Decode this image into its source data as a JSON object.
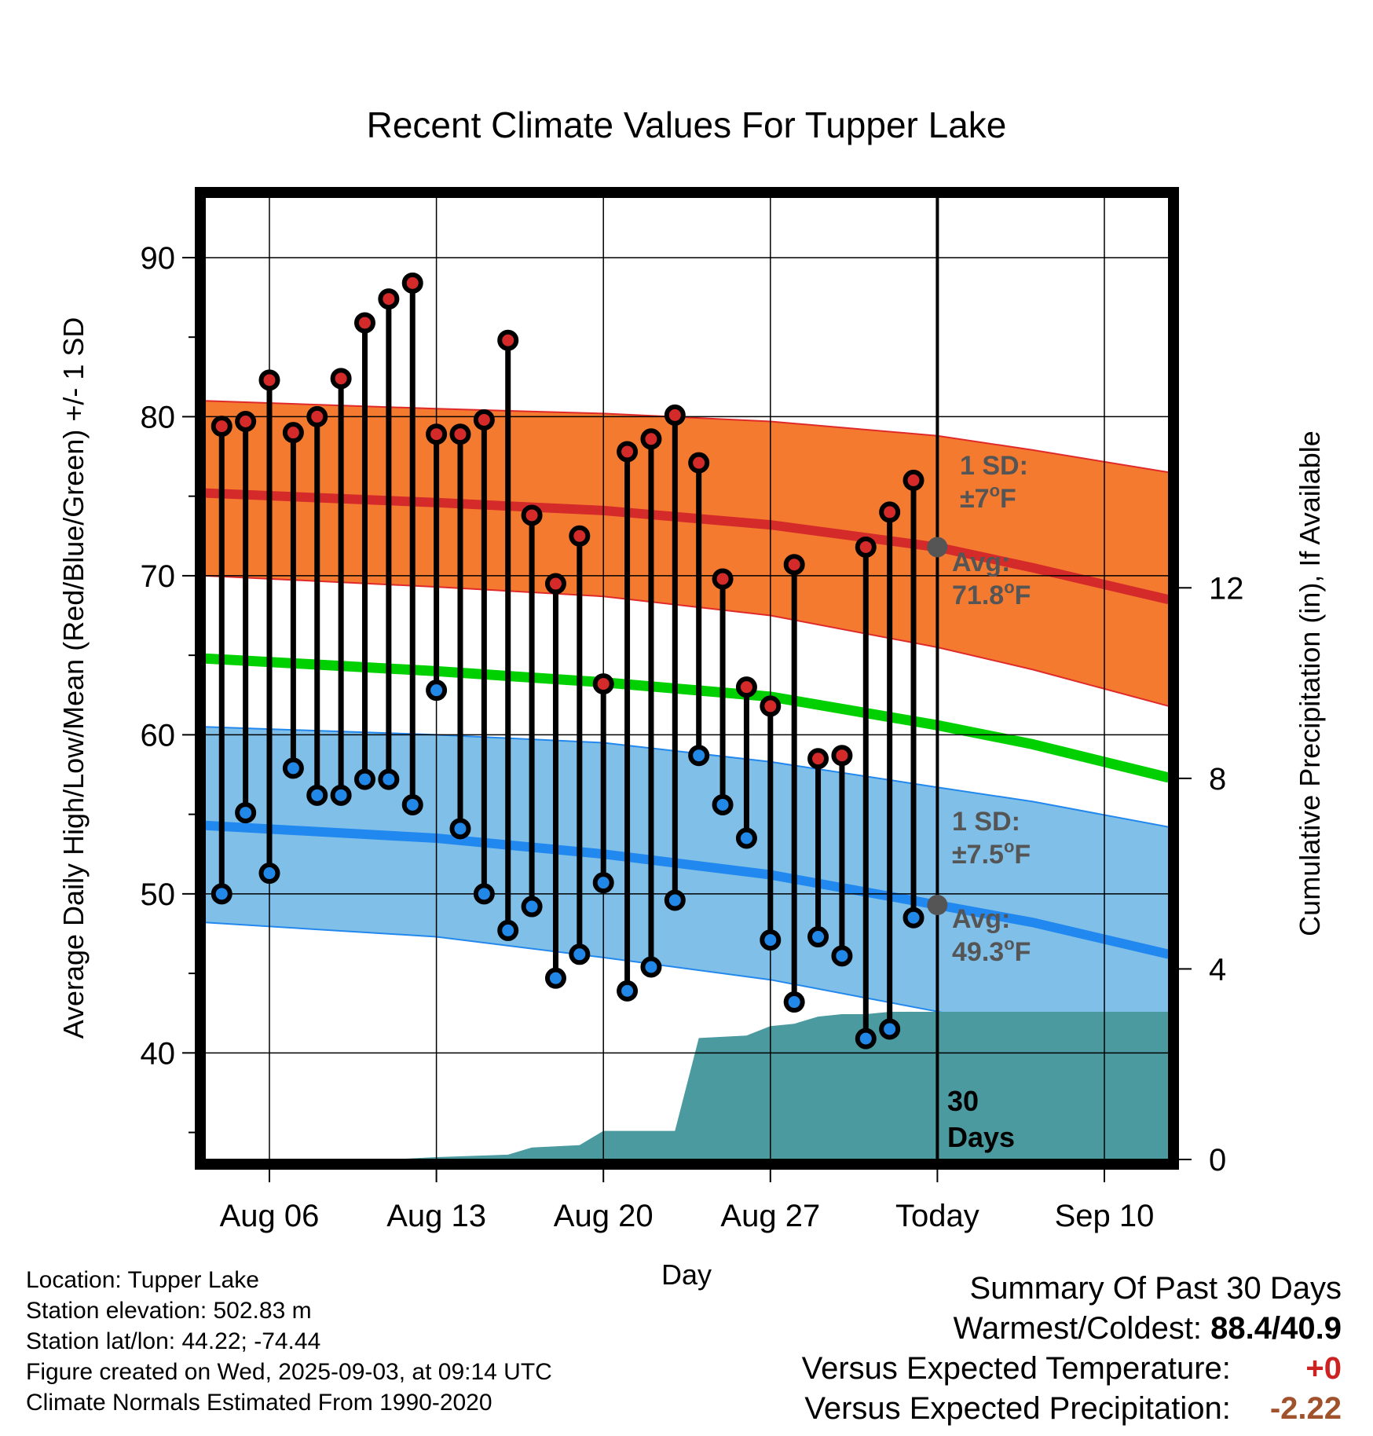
{
  "chart_data": {
    "type": "line",
    "title": "Recent Climate Values For Tupper Lake",
    "xlabel": "Day",
    "ylabel": "Average Daily High/Low/Mean (Red/Blue/Green) +/- 1 SD",
    "y2label": "Cumulative Precipitation (in), If Available",
    "ylim": [
      33.3,
      93.8
    ],
    "y2lim": [
      0,
      20.2
    ],
    "y_ticks": [
      "40",
      "50",
      "60",
      "70",
      "80",
      "90"
    ],
    "y2_ticks": [
      "0",
      "4",
      "8",
      "12"
    ],
    "x_ticks": [
      "Aug 06",
      "Aug 13",
      "Aug 20",
      "Aug 27",
      "Today",
      "Sep 10"
    ],
    "x_tick_days": [
      6,
      13,
      20,
      27,
      34,
      41
    ],
    "xlim": [
      3.3,
      43.7
    ],
    "today_day": 34,
    "days": [
      4,
      5,
      6,
      7,
      8,
      9,
      10,
      11,
      12,
      13,
      14,
      15,
      16,
      17,
      18,
      19,
      20,
      21,
      22,
      23,
      24,
      25,
      26,
      27,
      28,
      29,
      30,
      31,
      32,
      33
    ],
    "series": [
      {
        "name": "Daily High",
        "color": "#d42a2a",
        "values": [
          79.4,
          79.7,
          82.3,
          79.0,
          80.0,
          82.4,
          85.9,
          87.4,
          88.4,
          78.9,
          78.9,
          79.8,
          84.8,
          73.8,
          69.5,
          72.5,
          63.2,
          77.8,
          78.6,
          80.1,
          77.1,
          69.8,
          63.0,
          61.8,
          70.7,
          58.5,
          58.7,
          71.8,
          74.0,
          76.0
        ]
      },
      {
        "name": "Daily Low",
        "color": "#2188e8",
        "values": [
          50.0,
          55.1,
          51.3,
          57.9,
          56.2,
          56.2,
          57.2,
          57.2,
          55.6,
          62.8,
          54.1,
          50.0,
          47.7,
          49.2,
          44.7,
          46.2,
          50.7,
          43.9,
          45.4,
          49.6,
          58.7,
          55.6,
          53.5,
          47.1,
          43.2,
          47.3,
          46.1,
          40.9,
          41.5,
          48.5
        ]
      }
    ],
    "normals": {
      "days": [
        3.3,
        13,
        20,
        27,
        34,
        38,
        43.7
      ],
      "high_avg": [
        75.2,
        74.6,
        74.1,
        73.2,
        71.8,
        70.5,
        68.5
      ],
      "high_upper": [
        81.0,
        80.5,
        80.2,
        79.7,
        78.8,
        77.9,
        76.5
      ],
      "high_lower": [
        70.0,
        69.3,
        68.7,
        67.5,
        65.5,
        64.1,
        61.8
      ],
      "mean_avg": [
        64.8,
        64.0,
        63.3,
        62.4,
        60.6,
        59.4,
        57.3
      ],
      "low_avg": [
        54.3,
        53.5,
        52.5,
        51.2,
        49.3,
        48.2,
        46.2
      ],
      "low_upper": [
        60.5,
        60.0,
        59.5,
        58.3,
        56.7,
        55.8,
        54.2
      ],
      "low_lower": [
        48.2,
        47.3,
        46.0,
        44.6,
        42.6,
        41.4,
        38.8
      ],
      "high_color": "#f47a30",
      "high_band_edge": "#e02a2a",
      "mean_color": "#00d000",
      "low_color": "#80c0e8",
      "low_band_edge": "#2288ee"
    },
    "precip": {
      "color": "#4a9aa0",
      "days": [
        3.3,
        11,
        13,
        16,
        17,
        19,
        20,
        22,
        23,
        24,
        26,
        27,
        28,
        29,
        30,
        31,
        32,
        33,
        43.7
      ],
      "values": [
        0.0,
        0.0,
        0.05,
        0.1,
        0.25,
        0.3,
        0.6,
        0.6,
        0.6,
        2.55,
        2.6,
        2.8,
        2.85,
        3.0,
        3.05,
        3.05,
        3.1,
        3.1,
        3.1
      ]
    },
    "annotations": {
      "high_sd": [
        "1 SD:",
        "±7",
        "o",
        "F"
      ],
      "high_avg": [
        "Avg:",
        "71.8",
        "o",
        "F"
      ],
      "low_sd": [
        "1 SD:",
        "±7.5",
        "o",
        "F"
      ],
      "low_avg": [
        "Avg:",
        "49.3",
        "o",
        "F"
      ],
      "days_label": [
        "30",
        "Days"
      ]
    }
  },
  "footer": {
    "location": "Location: Tupper Lake",
    "elevation": "Station elevation: 502.83 m",
    "latlon": "Station lat/lon: 44.22; -74.44",
    "created": "Figure created on Wed, 2025-09-03, at 09:14 UTC",
    "normals": "Climate Normals Estimated From 1990-2020"
  },
  "summary": {
    "title": "Summary Of Past 30 Days",
    "warm_cold_label": "Warmest/Coldest:",
    "warm_cold_value": "88.4/40.9",
    "temp_label": "Versus Expected Temperature:",
    "temp_value": "+0",
    "temp_color": "#cc2222",
    "precip_label": "Versus Expected Precipitation:",
    "precip_value": "-2.22",
    "precip_color": "#a0522d"
  }
}
